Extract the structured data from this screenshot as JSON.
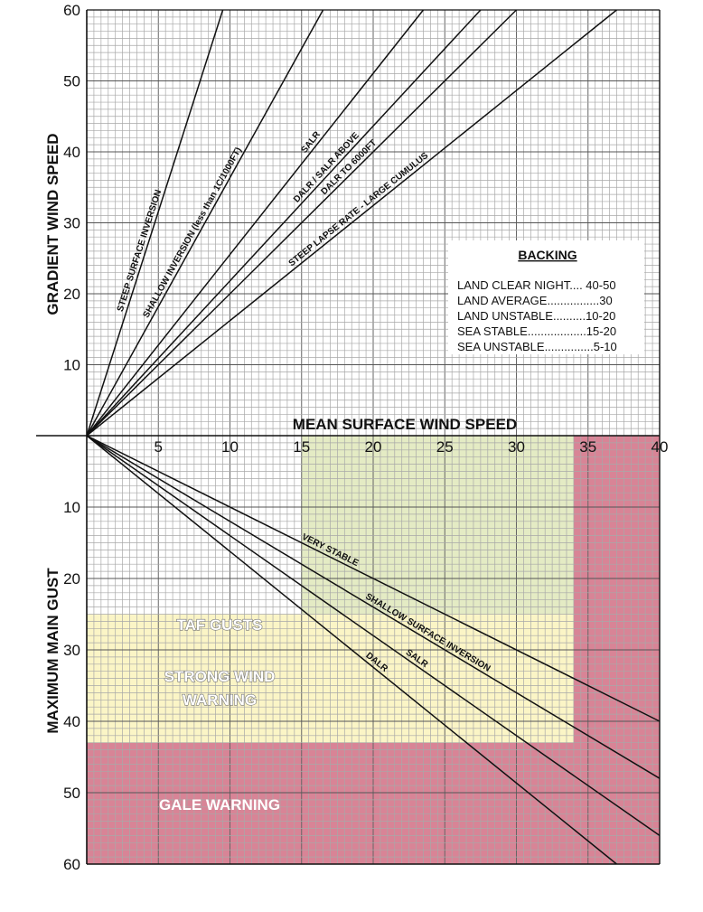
{
  "chart_data": {
    "type": "line",
    "upper_panel": {
      "xlabel": "MEAN SURFACE WIND SPEED",
      "ylabel": "GRADIENT WIND SPEED",
      "x_ticks": [
        "5",
        "10",
        "15",
        "20",
        "25",
        "30",
        "35",
        "40"
      ],
      "y_ticks": [
        "10",
        "20",
        "30",
        "40",
        "50",
        "60"
      ],
      "xlim": [
        0,
        40
      ],
      "ylim": [
        0,
        60
      ],
      "series": [
        {
          "name": "STEEP SURFACE INVERSION",
          "x": [
            0,
            9.5
          ],
          "y": [
            0,
            60
          ]
        },
        {
          "name": "SHALLOW INVERSION (less than 1C/1000FT)",
          "x": [
            0,
            16.5
          ],
          "y": [
            0,
            60
          ]
        },
        {
          "name": "SALR",
          "x": [
            0,
            23.5
          ],
          "y": [
            0,
            60
          ]
        },
        {
          "name": "DALR / SALR ABOVE",
          "x": [
            0,
            27.5
          ],
          "y": [
            0,
            60
          ]
        },
        {
          "name": "DALR TO 6000FT",
          "x": [
            0,
            30
          ],
          "y": [
            0,
            60
          ]
        },
        {
          "name": "STEEP LAPSE RATE - LARGE CUMULUS",
          "x": [
            0,
            37
          ],
          "y": [
            0,
            60
          ]
        }
      ],
      "backing_table": {
        "title": "BACKING",
        "rows": [
          "LAND CLEAR NIGHT.... 40-50",
          "LAND  AVERAGE................30",
          "LAND UNSTABLE..........10-20",
          "SEA STABLE..................15-20",
          "SEA UNSTABLE...............5-10"
        ]
      }
    },
    "lower_panel": {
      "ylabel": "MAXIMUM MAIN GUST",
      "y_ticks": [
        "10",
        "20",
        "30",
        "40",
        "50",
        "60"
      ],
      "xlim": [
        0,
        40
      ],
      "ylim": [
        0,
        60
      ],
      "series": [
        {
          "name": "VERY STABLE",
          "x": [
            0,
            40
          ],
          "y": [
            0,
            40
          ]
        },
        {
          "name": "SHALLOW SURFACE INVERSION",
          "x": [
            0,
            40
          ],
          "y": [
            0,
            48
          ]
        },
        {
          "name": "SALR",
          "x": [
            0,
            40
          ],
          "y": [
            0,
            56
          ]
        },
        {
          "name": "DALR",
          "x": [
            0,
            37
          ],
          "y": [
            0,
            60
          ]
        }
      ],
      "zones": [
        {
          "name": "TAF GUSTS",
          "x": [
            15,
            34
          ],
          "y": [
            0,
            25
          ],
          "color": "#e4ebc4"
        },
        {
          "name": "TAF GUSTS",
          "x": [
            0,
            34
          ],
          "y": [
            25,
            43
          ],
          "color": "#fbf5c6"
        },
        {
          "name": "STRONG WIND WARNING",
          "x": [
            0,
            34
          ],
          "y": [
            25,
            43
          ],
          "color": "#fbf5c6"
        },
        {
          "name": "GALE WARNING",
          "x": [
            34,
            40
          ],
          "y": [
            0,
            60
          ],
          "color": "#d88496"
        },
        {
          "name": "GALE WARNING",
          "x": [
            0,
            40
          ],
          "y": [
            43,
            60
          ],
          "color": "#d88496"
        }
      ],
      "zone_labels": {
        "taf": "TAF GUSTS",
        "strong_1": "STRONG WIND",
        "strong_2": "WARNING",
        "gale": "GALE WARNING"
      }
    }
  }
}
